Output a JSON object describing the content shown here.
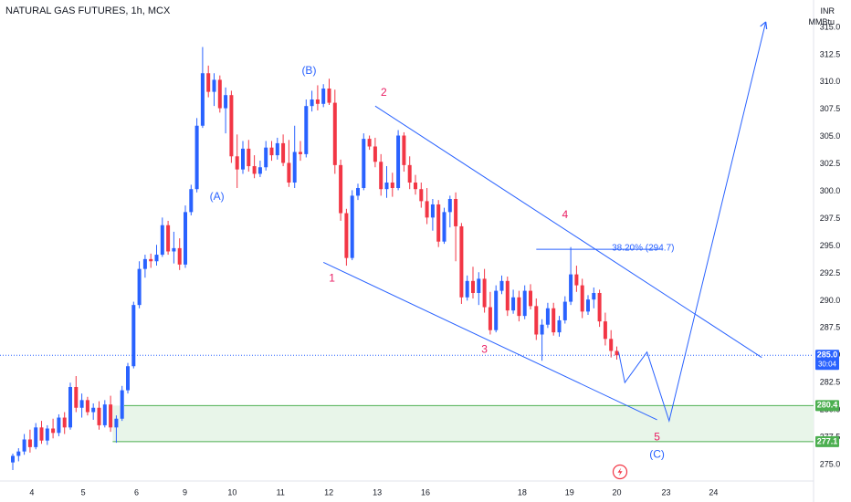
{
  "header": {
    "symbol": "NATURAL GAS FUTURES, 1h, MCX",
    "currency": "INR",
    "unit": "MMBtu"
  },
  "colors": {
    "up": "#2962ff",
    "down": "#f23645",
    "wave_main": "#2962ff",
    "wave_sub": "#e91e63",
    "zone_fill": "#e8f5e9",
    "zone_line": "#4caf50",
    "price_tag": "#2962ff"
  },
  "chart_data": {
    "type": "candlestick",
    "title": "NATURAL GAS FUTURES, 1h, MCX",
    "ylim": [
      273.5,
      317.5
    ],
    "y_ticks": [
      275.0,
      277.5,
      280.0,
      282.5,
      285.0,
      287.5,
      290.0,
      292.5,
      295.0,
      297.5,
      300.0,
      302.5,
      305.0,
      307.5,
      310.0,
      312.5,
      315.0
    ],
    "x_ticks": [
      "4",
      "5",
      "6",
      "9",
      "10",
      "11",
      "12",
      "13",
      "16",
      "18",
      "19",
      "20",
      "23",
      "24"
    ],
    "last_price": {
      "value": "285.0",
      "countdown": "30:04"
    },
    "zone": {
      "top": 280.4,
      "bottom": 277.1,
      "top_label": "280.4",
      "bottom_label": "277.1"
    },
    "fib": {
      "label": "38.20% (294.7)",
      "value": 294.7
    },
    "wave_labels": [
      {
        "text": "(A)",
        "price": 299.5,
        "kind": "main"
      },
      {
        "text": "(B)",
        "price": 311.0,
        "kind": "main"
      },
      {
        "text": "1",
        "price": 292.0,
        "kind": "sub"
      },
      {
        "text": "2",
        "price": 309.0,
        "kind": "sub"
      },
      {
        "text": "3",
        "price": 285.5,
        "kind": "sub"
      },
      {
        "text": "4",
        "price": 297.8,
        "kind": "sub"
      },
      {
        "text": "5",
        "price": 277.5,
        "kind": "sub"
      },
      {
        "text": "(C)",
        "price": 275.9,
        "kind": "main"
      }
    ],
    "projection_prices": [
      285.3,
      282.5,
      285.3,
      279.0,
      315.5
    ],
    "channel": {
      "upper": [
        307.8,
        284.8
      ],
      "lower": [
        293.5,
        279.1
      ]
    },
    "candles": [
      [
        275.2,
        276.0,
        274.5,
        275.8
      ],
      [
        275.8,
        276.5,
        275.3,
        276.2
      ],
      [
        276.2,
        277.8,
        275.9,
        277.3
      ],
      [
        277.3,
        278.2,
        276.1,
        276.6
      ],
      [
        276.6,
        278.8,
        276.4,
        278.4
      ],
      [
        278.4,
        279.0,
        276.9,
        277.2
      ],
      [
        277.2,
        278.6,
        276.8,
        278.3
      ],
      [
        278.3,
        279.2,
        277.4,
        277.9
      ],
      [
        277.9,
        279.6,
        277.6,
        279.3
      ],
      [
        279.3,
        279.8,
        277.8,
        278.4
      ],
      [
        278.4,
        282.5,
        278.2,
        282.1
      ],
      [
        282.1,
        283.1,
        279.8,
        280.2
      ],
      [
        280.2,
        281.5,
        279.3,
        280.9
      ],
      [
        280.9,
        281.2,
        279.5,
        279.8
      ],
      [
        279.8,
        280.6,
        279.1,
        280.2
      ],
      [
        280.2,
        280.8,
        278.2,
        278.6
      ],
      [
        278.6,
        280.9,
        278.4,
        280.5
      ],
      [
        280.5,
        281.3,
        278.0,
        278.4
      ],
      [
        278.4,
        279.5,
        277.0,
        279.2
      ],
      [
        279.2,
        282.2,
        279.0,
        281.8
      ],
      [
        281.8,
        284.3,
        281.5,
        284.0
      ],
      [
        284.0,
        289.9,
        283.8,
        289.6
      ],
      [
        289.6,
        293.6,
        289.3,
        292.9
      ],
      [
        292.9,
        294.2,
        292.1,
        293.8
      ],
      [
        293.8,
        294.3,
        293.0,
        293.6
      ],
      [
        293.6,
        295.1,
        293.2,
        294.2
      ],
      [
        294.2,
        297.6,
        294.0,
        296.9
      ],
      [
        296.9,
        297.3,
        294.2,
        294.5
      ],
      [
        294.5,
        296.3,
        293.4,
        294.8
      ],
      [
        294.8,
        295.7,
        292.8,
        293.3
      ],
      [
        293.3,
        298.7,
        293.0,
        298.1
      ],
      [
        298.1,
        300.6,
        297.8,
        300.2
      ],
      [
        300.2,
        306.7,
        299.9,
        306.0
      ],
      [
        306.0,
        313.2,
        305.8,
        310.8
      ],
      [
        310.8,
        311.5,
        308.6,
        309.1
      ],
      [
        309.1,
        310.8,
        307.8,
        310.2
      ],
      [
        310.2,
        310.6,
        307.2,
        307.6
      ],
      [
        307.6,
        309.5,
        305.3,
        308.8
      ],
      [
        308.8,
        309.2,
        302.6,
        303.2
      ],
      [
        303.2,
        305.2,
        300.3,
        302.0
      ],
      [
        302.0,
        304.6,
        301.6,
        303.9
      ],
      [
        303.9,
        304.7,
        301.8,
        302.3
      ],
      [
        302.3,
        303.3,
        301.2,
        301.6
      ],
      [
        301.6,
        302.8,
        301.3,
        302.2
      ],
      [
        302.2,
        304.6,
        301.9,
        304.0
      ],
      [
        304.0,
        304.6,
        302.8,
        303.3
      ],
      [
        303.3,
        304.9,
        302.9,
        304.4
      ],
      [
        304.4,
        305.2,
        302.3,
        302.6
      ],
      [
        302.6,
        304.7,
        300.4,
        300.8
      ],
      [
        300.8,
        306.0,
        300.3,
        303.6
      ],
      [
        303.6,
        304.6,
        302.8,
        303.4
      ],
      [
        303.4,
        308.4,
        303.1,
        307.8
      ],
      [
        307.8,
        309.2,
        307.3,
        308.4
      ],
      [
        308.4,
        309.7,
        307.4,
        308.0
      ],
      [
        308.0,
        309.8,
        307.7,
        309.4
      ],
      [
        309.4,
        310.3,
        307.9,
        308.1
      ],
      [
        308.1,
        309.3,
        301.6,
        302.4
      ],
      [
        302.4,
        302.9,
        297.3,
        298.0
      ],
      [
        298.0,
        298.4,
        293.2,
        293.9
      ],
      [
        293.9,
        300.1,
        293.7,
        299.6
      ],
      [
        299.6,
        300.7,
        299.2,
        300.3
      ],
      [
        300.3,
        305.3,
        300.1,
        304.8
      ],
      [
        304.8,
        305.1,
        303.8,
        304.1
      ],
      [
        304.1,
        304.9,
        302.2,
        302.7
      ],
      [
        302.7,
        303.4,
        299.6,
        300.2
      ],
      [
        300.2,
        302.3,
        299.4,
        300.8
      ],
      [
        300.8,
        301.7,
        299.5,
        300.3
      ],
      [
        300.3,
        305.6,
        300.1,
        305.1
      ],
      [
        305.1,
        305.4,
        301.8,
        302.4
      ],
      [
        302.4,
        303.2,
        300.2,
        300.8
      ],
      [
        300.8,
        301.5,
        299.7,
        300.2
      ],
      [
        300.2,
        300.8,
        298.5,
        299.1
      ],
      [
        299.1,
        300.3,
        297.0,
        297.6
      ],
      [
        297.6,
        299.3,
        296.4,
        298.8
      ],
      [
        298.8,
        299.2,
        294.9,
        295.4
      ],
      [
        295.4,
        298.5,
        295.2,
        298.1
      ],
      [
        298.1,
        299.6,
        296.7,
        299.3
      ],
      [
        299.3,
        299.9,
        293.6,
        296.8
      ],
      [
        296.8,
        297.1,
        289.7,
        290.3
      ],
      [
        290.3,
        292.3,
        290.0,
        291.8
      ],
      [
        291.8,
        293.1,
        290.2,
        290.7
      ],
      [
        290.7,
        292.6,
        289.6,
        292.0
      ],
      [
        292.0,
        292.9,
        288.9,
        289.4
      ],
      [
        289.4,
        290.8,
        286.9,
        287.3
      ],
      [
        287.3,
        291.4,
        287.1,
        290.9
      ],
      [
        290.9,
        292.3,
        290.6,
        291.8
      ],
      [
        291.8,
        292.2,
        288.6,
        289.1
      ],
      [
        289.1,
        291.0,
        288.8,
        290.3
      ],
      [
        290.3,
        290.9,
        288.1,
        288.6
      ],
      [
        288.6,
        291.4,
        288.3,
        290.9
      ],
      [
        290.9,
        291.5,
        289.2,
        289.5
      ],
      [
        289.5,
        290.2,
        286.4,
        286.9
      ],
      [
        286.9,
        288.3,
        284.5,
        287.8
      ],
      [
        287.8,
        289.8,
        287.5,
        289.3
      ],
      [
        289.3,
        289.8,
        286.8,
        287.1
      ],
      [
        287.1,
        288.6,
        286.7,
        288.2
      ],
      [
        288.2,
        290.4,
        287.9,
        289.9
      ],
      [
        289.9,
        294.9,
        289.6,
        292.4
      ],
      [
        292.4,
        293.2,
        290.8,
        291.4
      ],
      [
        291.4,
        292.0,
        288.4,
        289.0
      ],
      [
        289.0,
        290.5,
        288.7,
        290.1
      ],
      [
        290.1,
        291.2,
        289.3,
        290.7
      ],
      [
        290.7,
        291.0,
        287.6,
        288.1
      ],
      [
        288.1,
        288.9,
        285.9,
        286.5
      ],
      [
        286.5,
        287.3,
        284.8,
        285.4
      ],
      [
        285.4,
        285.8,
        284.6,
        285.0
      ]
    ]
  }
}
